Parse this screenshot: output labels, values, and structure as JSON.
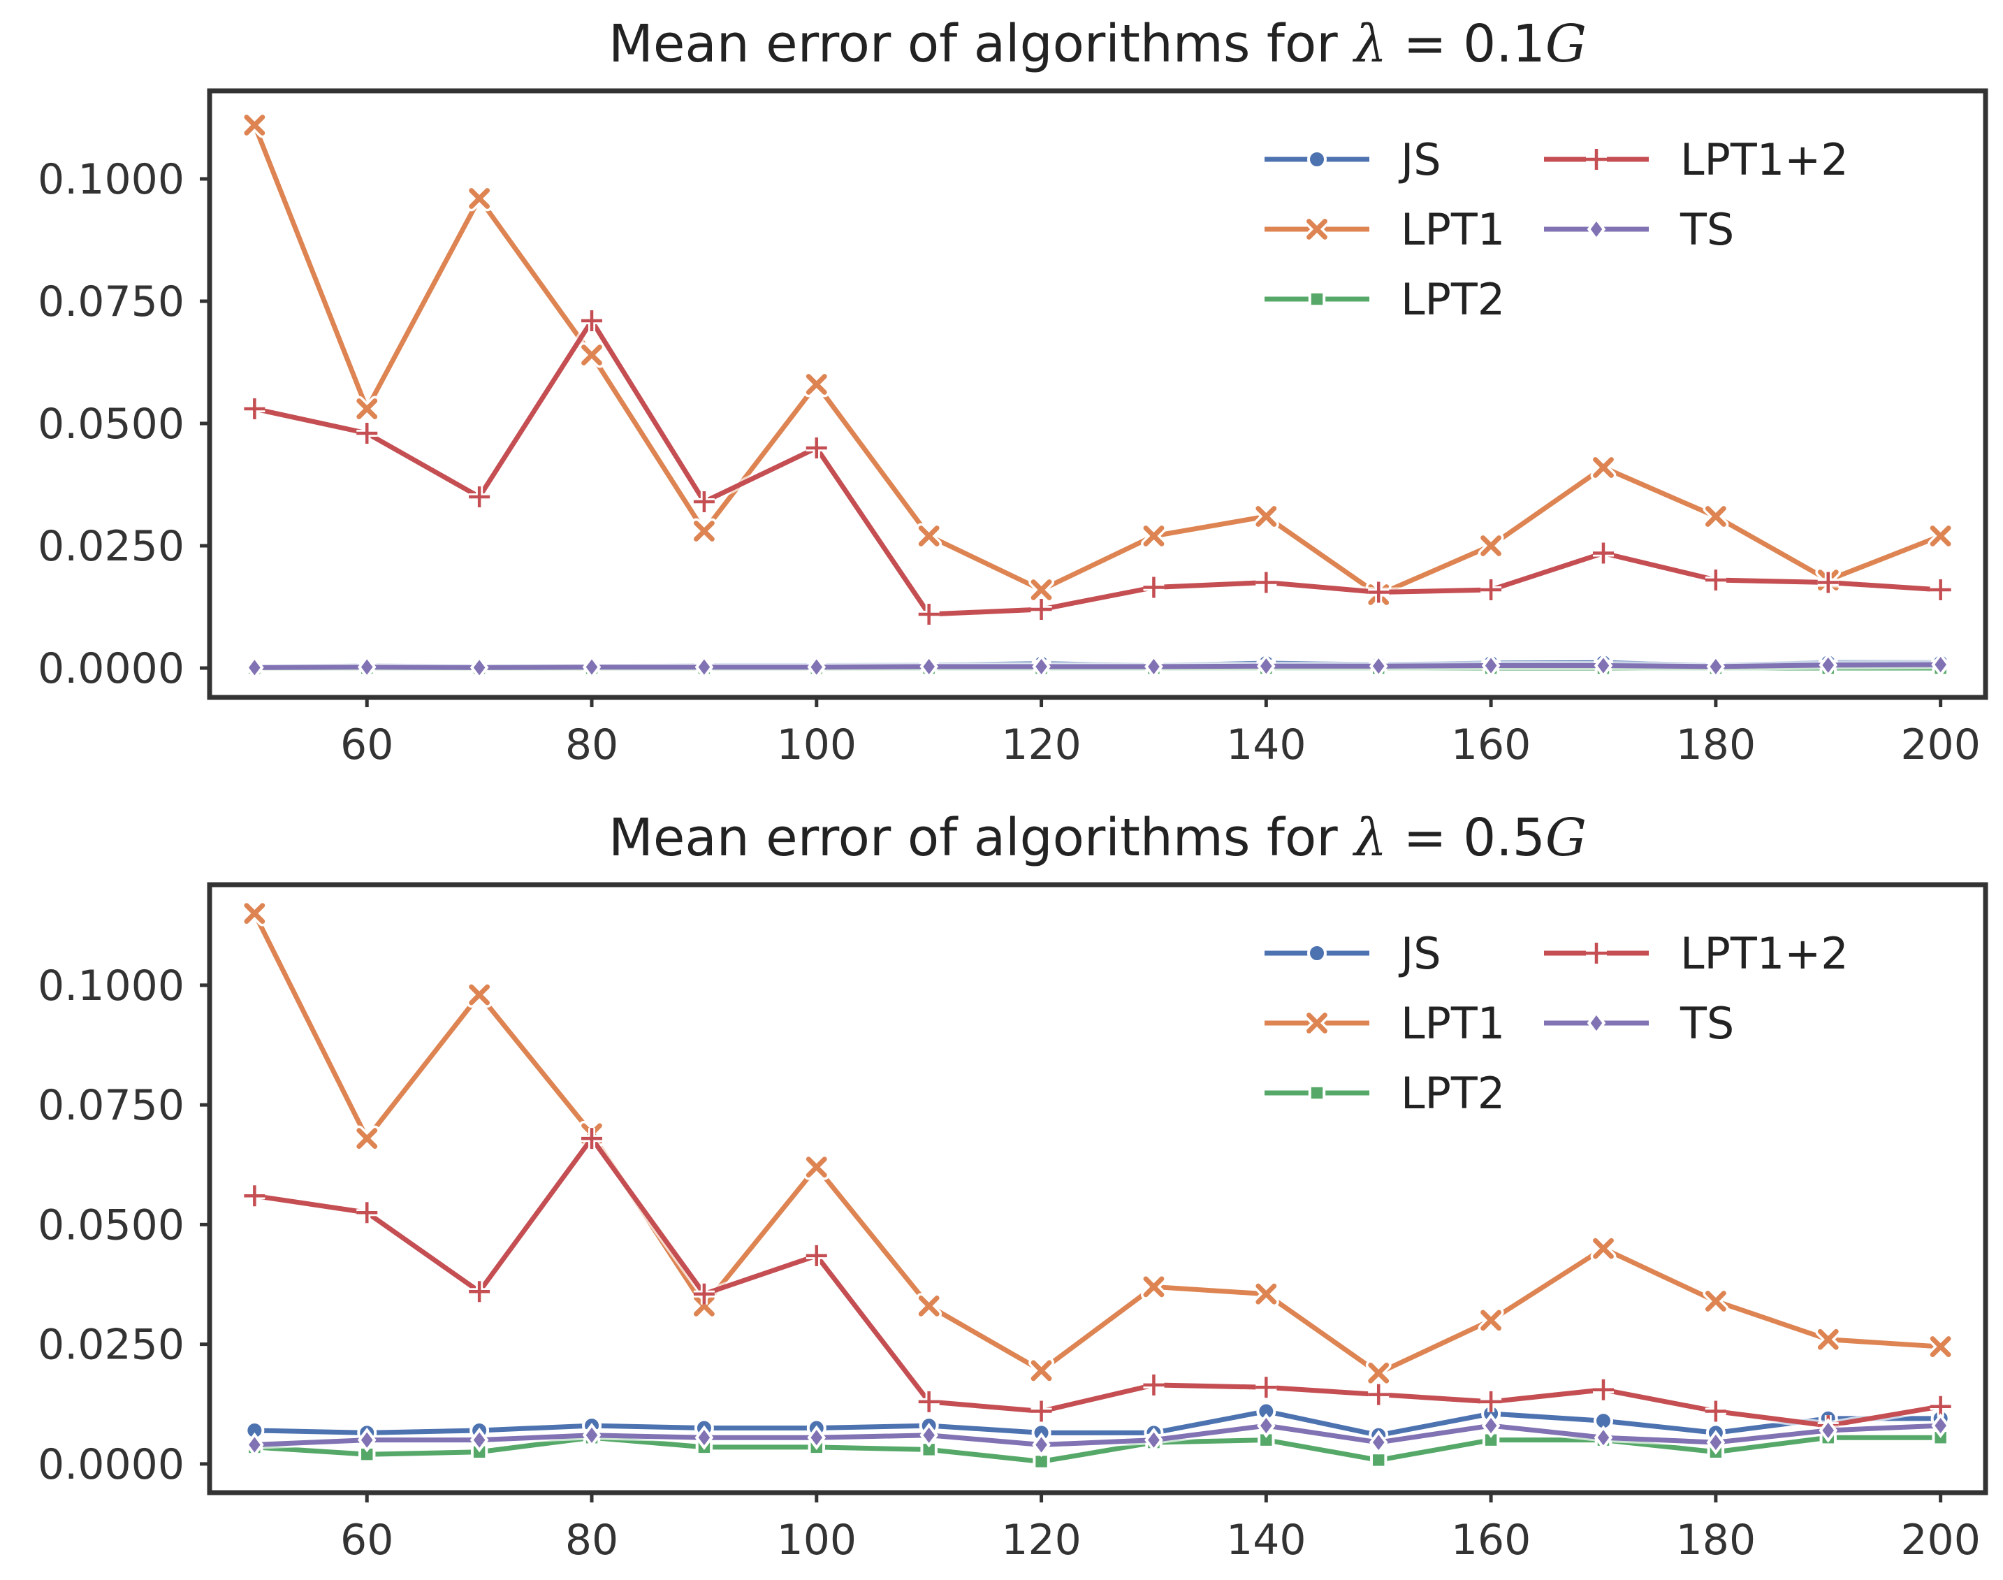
{
  "chart_data": [
    {
      "type": "line",
      "title": "Mean error of algorithms for λ = 0.1G",
      "title_prefix": "Mean error of algorithms for ",
      "title_symbol": "λ",
      "title_eq": " = 0.1",
      "title_suffix": "G",
      "xlabel": "",
      "ylabel": "",
      "xlim": [
        46,
        204
      ],
      "ylim": [
        -0.006,
        0.118
      ],
      "xticks": [
        60,
        80,
        100,
        120,
        140,
        160,
        180,
        200
      ],
      "yticks": [
        0.0,
        0.025,
        0.05,
        0.075,
        0.1
      ],
      "ytick_labels": [
        "0.0000",
        "0.0250",
        "0.0500",
        "0.0750",
        "0.1000"
      ],
      "legend_position": "top-right",
      "x": [
        50,
        60,
        70,
        80,
        90,
        100,
        110,
        120,
        130,
        140,
        150,
        160,
        170,
        180,
        190,
        200
      ],
      "series": [
        {
          "name": "JS",
          "color": "#4c72b0",
          "marker": "circle",
          "values": [
            0.0002,
            0.0005,
            0.0003,
            0.0003,
            0.0005,
            0.0005,
            0.0006,
            0.0009,
            0.0005,
            0.001,
            0.0007,
            0.001,
            0.0011,
            0.0005,
            0.0011,
            0.0011
          ]
        },
        {
          "name": "LPT1",
          "color": "#dd8452",
          "marker": "x",
          "values": [
            0.111,
            0.053,
            0.096,
            0.064,
            0.028,
            0.058,
            0.027,
            0.016,
            0.027,
            0.031,
            0.015,
            0.025,
            0.041,
            0.031,
            0.018,
            0.027
          ]
        },
        {
          "name": "LPT2",
          "color": "#55a868",
          "marker": "square",
          "values": [
            0.0,
            0.0,
            0.0,
            0.0,
            0.0,
            0.0,
            0.0,
            0.0,
            0.0,
            0.0,
            0.0,
            0.0,
            0.0,
            0.0,
            0.0,
            0.0
          ]
        },
        {
          "name": "LPT1+2",
          "color": "#c44e52",
          "marker": "plus",
          "values": [
            0.053,
            0.048,
            0.035,
            0.071,
            0.034,
            0.045,
            0.011,
            0.012,
            0.0165,
            0.0175,
            0.0155,
            0.016,
            0.0235,
            0.018,
            0.0175,
            0.016
          ]
        },
        {
          "name": "TS",
          "color": "#8172b3",
          "marker": "diamond",
          "values": [
            0.0001,
            0.0002,
            0.0001,
            0.0002,
            0.0002,
            0.0002,
            0.0003,
            0.0003,
            0.0003,
            0.0004,
            0.0004,
            0.0005,
            0.0005,
            0.0003,
            0.0006,
            0.0007
          ]
        }
      ]
    },
    {
      "type": "line",
      "title": "Mean error of algorithms for λ = 0.5G",
      "title_prefix": "Mean error of algorithms for ",
      "title_symbol": "λ",
      "title_eq": " = 0.5",
      "title_suffix": "G",
      "xlabel": "",
      "ylabel": "",
      "xlim": [
        46,
        204
      ],
      "ylim": [
        -0.006,
        0.121
      ],
      "xticks": [
        60,
        80,
        100,
        120,
        140,
        160,
        180,
        200
      ],
      "yticks": [
        0.0,
        0.025,
        0.05,
        0.075,
        0.1
      ],
      "ytick_labels": [
        "0.0000",
        "0.0250",
        "0.0500",
        "0.0750",
        "0.1000"
      ],
      "legend_position": "top-right",
      "x": [
        50,
        60,
        70,
        80,
        90,
        100,
        110,
        120,
        130,
        140,
        150,
        160,
        170,
        180,
        190,
        200
      ],
      "series": [
        {
          "name": "JS",
          "color": "#4c72b0",
          "marker": "circle",
          "values": [
            0.007,
            0.0065,
            0.007,
            0.008,
            0.0075,
            0.0075,
            0.008,
            0.0065,
            0.0065,
            0.011,
            0.006,
            0.0105,
            0.009,
            0.0065,
            0.0095,
            0.0095
          ]
        },
        {
          "name": "LPT1",
          "color": "#dd8452",
          "marker": "x",
          "values": [
            0.115,
            0.068,
            0.098,
            0.069,
            0.033,
            0.062,
            0.033,
            0.0195,
            0.037,
            0.0355,
            0.019,
            0.03,
            0.045,
            0.034,
            0.026,
            0.0245
          ]
        },
        {
          "name": "LPT2",
          "color": "#55a868",
          "marker": "square",
          "values": [
            0.0035,
            0.002,
            0.0025,
            0.0055,
            0.0035,
            0.0035,
            0.003,
            0.0005,
            0.0045,
            0.005,
            0.0008,
            0.005,
            0.005,
            0.0025,
            0.0055,
            0.0055
          ]
        },
        {
          "name": "LPT1+2",
          "color": "#c44e52",
          "marker": "plus",
          "values": [
            0.056,
            0.0525,
            0.036,
            0.068,
            0.0355,
            0.0435,
            0.013,
            0.011,
            0.0165,
            0.016,
            0.0145,
            0.013,
            0.0155,
            0.011,
            0.008,
            0.012
          ]
        },
        {
          "name": "TS",
          "color": "#8172b3",
          "marker": "diamond",
          "values": [
            0.004,
            0.005,
            0.005,
            0.006,
            0.0055,
            0.0055,
            0.006,
            0.004,
            0.005,
            0.008,
            0.0045,
            0.008,
            0.0055,
            0.0045,
            0.007,
            0.008
          ]
        }
      ]
    }
  ]
}
